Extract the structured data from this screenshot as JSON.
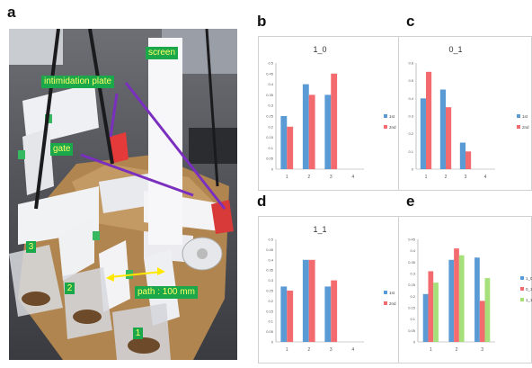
{
  "panels": {
    "a": "a",
    "b": "b",
    "c": "c",
    "d": "d",
    "e": "e"
  },
  "photo_labels": {
    "screen": "screen",
    "intimidation": "intimidation plate",
    "gate": "gate",
    "path": "path : 100 mm",
    "n1": "1",
    "n2": "2",
    "n3": "3"
  },
  "colors": {
    "series1": "#5b9bd5",
    "series2": "#f36b6f",
    "series3": "#a6e07a"
  },
  "chart_data": [
    {
      "id": "b",
      "type": "bar",
      "title": "1_0",
      "categories": [
        "1",
        "2",
        "3",
        "4"
      ],
      "yticks": [
        "0",
        "0.05",
        "0.1",
        "0.15",
        "0.2",
        "0.25",
        "0.3",
        "0.35",
        "0.4",
        "0.45",
        "0.5"
      ],
      "ylim": [
        0,
        0.5
      ],
      "series": [
        {
          "name": "1st",
          "values": [
            0.25,
            0.4,
            0.35,
            null
          ]
        },
        {
          "name": "2nd",
          "values": [
            0.2,
            0.35,
            0.45,
            null
          ]
        }
      ],
      "legend": "right"
    },
    {
      "id": "c",
      "type": "bar",
      "title": "0_1",
      "categories": [
        "1",
        "2",
        "3",
        "4"
      ],
      "yticks": [
        "0",
        "0.1",
        "0.2",
        "0.3",
        "0.4",
        "0.5",
        "0.6"
      ],
      "ylim": [
        0,
        0.6
      ],
      "series": [
        {
          "name": "1st",
          "values": [
            0.4,
            0.45,
            0.15,
            null
          ]
        },
        {
          "name": "2nd",
          "values": [
            0.55,
            0.35,
            0.1,
            null
          ]
        }
      ],
      "legend": "right"
    },
    {
      "id": "d",
      "type": "bar",
      "title": "1_1",
      "categories": [
        "1",
        "2",
        "3",
        "4"
      ],
      "yticks": [
        "0",
        "0.05",
        "0.1",
        "0.15",
        "0.2",
        "0.25",
        "0.3",
        "0.35",
        "0.4",
        "0.45",
        "0.5"
      ],
      "ylim": [
        0,
        0.5
      ],
      "series": [
        {
          "name": "1st",
          "values": [
            0.27,
            0.4,
            0.27,
            null
          ]
        },
        {
          "name": "2nd",
          "values": [
            0.25,
            0.4,
            0.3,
            null
          ]
        }
      ],
      "legend": "right"
    },
    {
      "id": "e",
      "type": "bar",
      "title": "",
      "categories": [
        "1",
        "2",
        "3"
      ],
      "yticks": [
        "0",
        "0.05",
        "0.1",
        "0.15",
        "0.2",
        "0.25",
        "0.3",
        "0.35",
        "0.4",
        "0.45"
      ],
      "ylim": [
        0,
        0.45
      ],
      "series": [
        {
          "name": "1_0",
          "values": [
            0.21,
            0.36,
            0.37
          ]
        },
        {
          "name": "0_1",
          "values": [
            0.31,
            0.41,
            0.18
          ]
        },
        {
          "name": "1_1",
          "values": [
            0.26,
            0.38,
            0.28
          ]
        }
      ],
      "legend": "right"
    }
  ]
}
